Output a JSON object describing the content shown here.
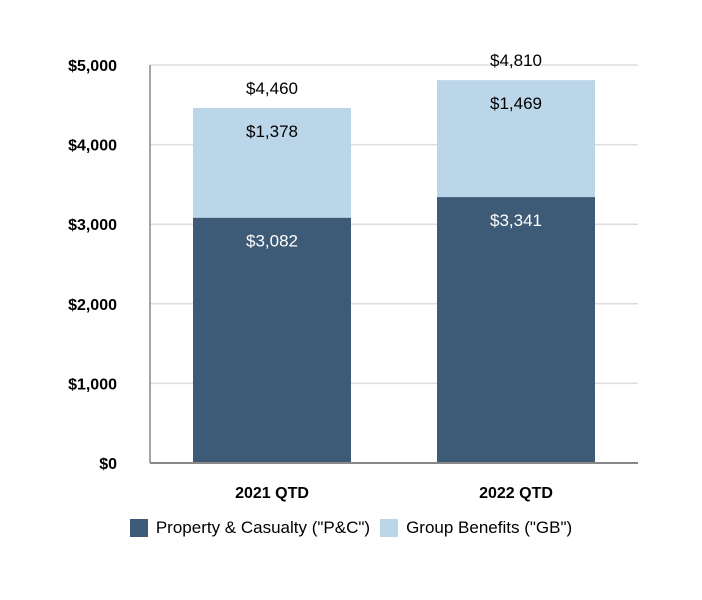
{
  "chart_data": {
    "type": "bar",
    "stacked": true,
    "categories": [
      "2021 QTD",
      "2022 QTD"
    ],
    "series": [
      {
        "name": "Property & Casualty (\"P&C\")",
        "values": [
          3082,
          3341
        ],
        "labels": [
          "$3,082",
          "$3,341"
        ],
        "color": "#3d5a77"
      },
      {
        "name": "Group Benefits (\"GB\")",
        "values": [
          1378,
          1469
        ],
        "labels": [
          "$1,378",
          "$1,469"
        ],
        "color": "#bcd6e9"
      }
    ],
    "totals": [
      4460,
      4810
    ],
    "total_labels": [
      "$4,460",
      "$4,810"
    ],
    "yticks": [
      0,
      1000,
      2000,
      3000,
      4000,
      5000
    ],
    "ytick_labels": [
      "$0",
      "$1,000",
      "$2,000",
      "$3,000",
      "$4,000",
      "$5,000"
    ],
    "ylim": [
      0,
      5000
    ],
    "grid": true,
    "legend_position": "bottom"
  }
}
